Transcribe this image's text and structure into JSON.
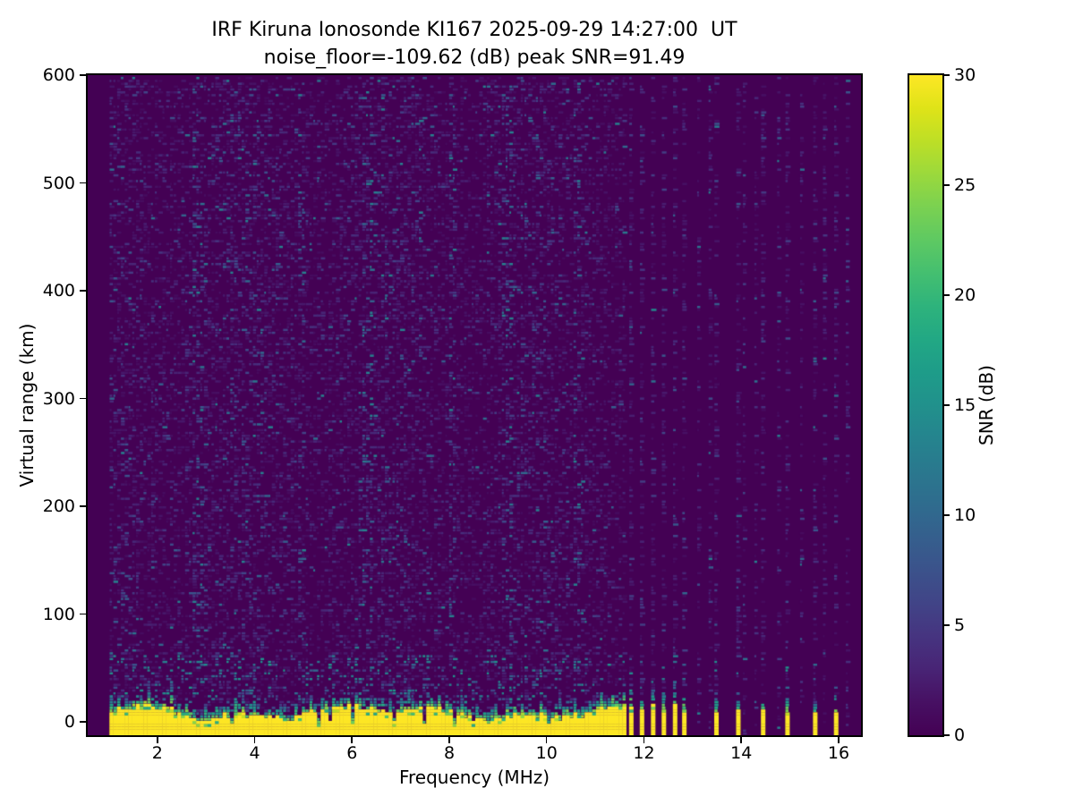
{
  "figure": {
    "kind": "matplotlib-style static ionogram figure",
    "background": "#ffffff"
  },
  "chart_data": {
    "type": "heatmap",
    "title_line1": "IRF Kiruna Ionosonde KI167 2025-09-29 14:27:00  UT",
    "title_line2": "noise_floor=-109.62 (dB) peak SNR=91.49",
    "station": "IRF Kiruna Ionosonde KI167",
    "timestamp_ut": "2025-09-29 14:27:00 UT",
    "noise_floor_db": -109.62,
    "peak_snr_db": 91.49,
    "xlabel": "Frequency (MHz)",
    "ylabel": "Virtual range (km)",
    "colorbar_label": "SNR (dB)",
    "colormap": "viridis",
    "colormap_stops": [
      "#440154",
      "#471063",
      "#482475",
      "#463480",
      "#414487",
      "#3b528b",
      "#355f8d",
      "#2f6c8e",
      "#2a788e",
      "#25848e",
      "#21918c",
      "#1e9c89",
      "#22a884",
      "#2eb37c",
      "#44bf70",
      "#5ec962",
      "#7ad151",
      "#9bd93c",
      "#bddf26",
      "#dfe318",
      "#fde725"
    ],
    "xlim_mhz": [
      0.57,
      16.46
    ],
    "ylim_km": [
      -12.4,
      600
    ],
    "snr_scale_db": [
      0,
      30
    ],
    "x_ticks_mhz": [
      2,
      4,
      6,
      8,
      10,
      12,
      14,
      16
    ],
    "y_ticks_km": [
      0,
      100,
      200,
      300,
      400,
      500,
      600
    ],
    "colorbar_ticks_db": [
      0,
      5,
      10,
      15,
      20,
      25,
      30
    ],
    "grid": false,
    "content": {
      "description": "Dark 0 dB noise floor speckled with faint 1-12 dB horizontal noise dashes over the full 0-600 km range. A saturated (>=30 dB) yellow ground-clutter band rises from the bottom edge to about 5-20 km with a jagged green/teal fringe reaching roughly 25-45 km. The sweep is continuous from 1.0 to 11.6 MHz; above 11.6 MHz only discrete stepped channels (about 0.235 MHz apart) are sounded, appearing as narrow vertical speckle columns, a subset of which carry strong clutter to the bottom edge.",
      "continuous_sweep_mhz": [
        1.02,
        11.62
      ],
      "stepped_sweep_mhz": [
        11.72,
        16.3
      ],
      "stepped_spacing_mhz": 0.235,
      "strong_stepped_channels_mhz": [
        11.74,
        11.96,
        12.19,
        12.41,
        12.64,
        12.83,
        13.49,
        13.94,
        14.45,
        14.95,
        15.52,
        15.95
      ],
      "enhanced_noise_columns_mhz": [
        2.8,
        4.95,
        6.3,
        8.05,
        9.15,
        10.6
      ],
      "clutter_band_top_km_range": [
        5,
        20
      ],
      "clutter_fringe_top_km_range": [
        20,
        45
      ],
      "background_snr_db": 0,
      "clutter_snr_db": 30
    }
  }
}
